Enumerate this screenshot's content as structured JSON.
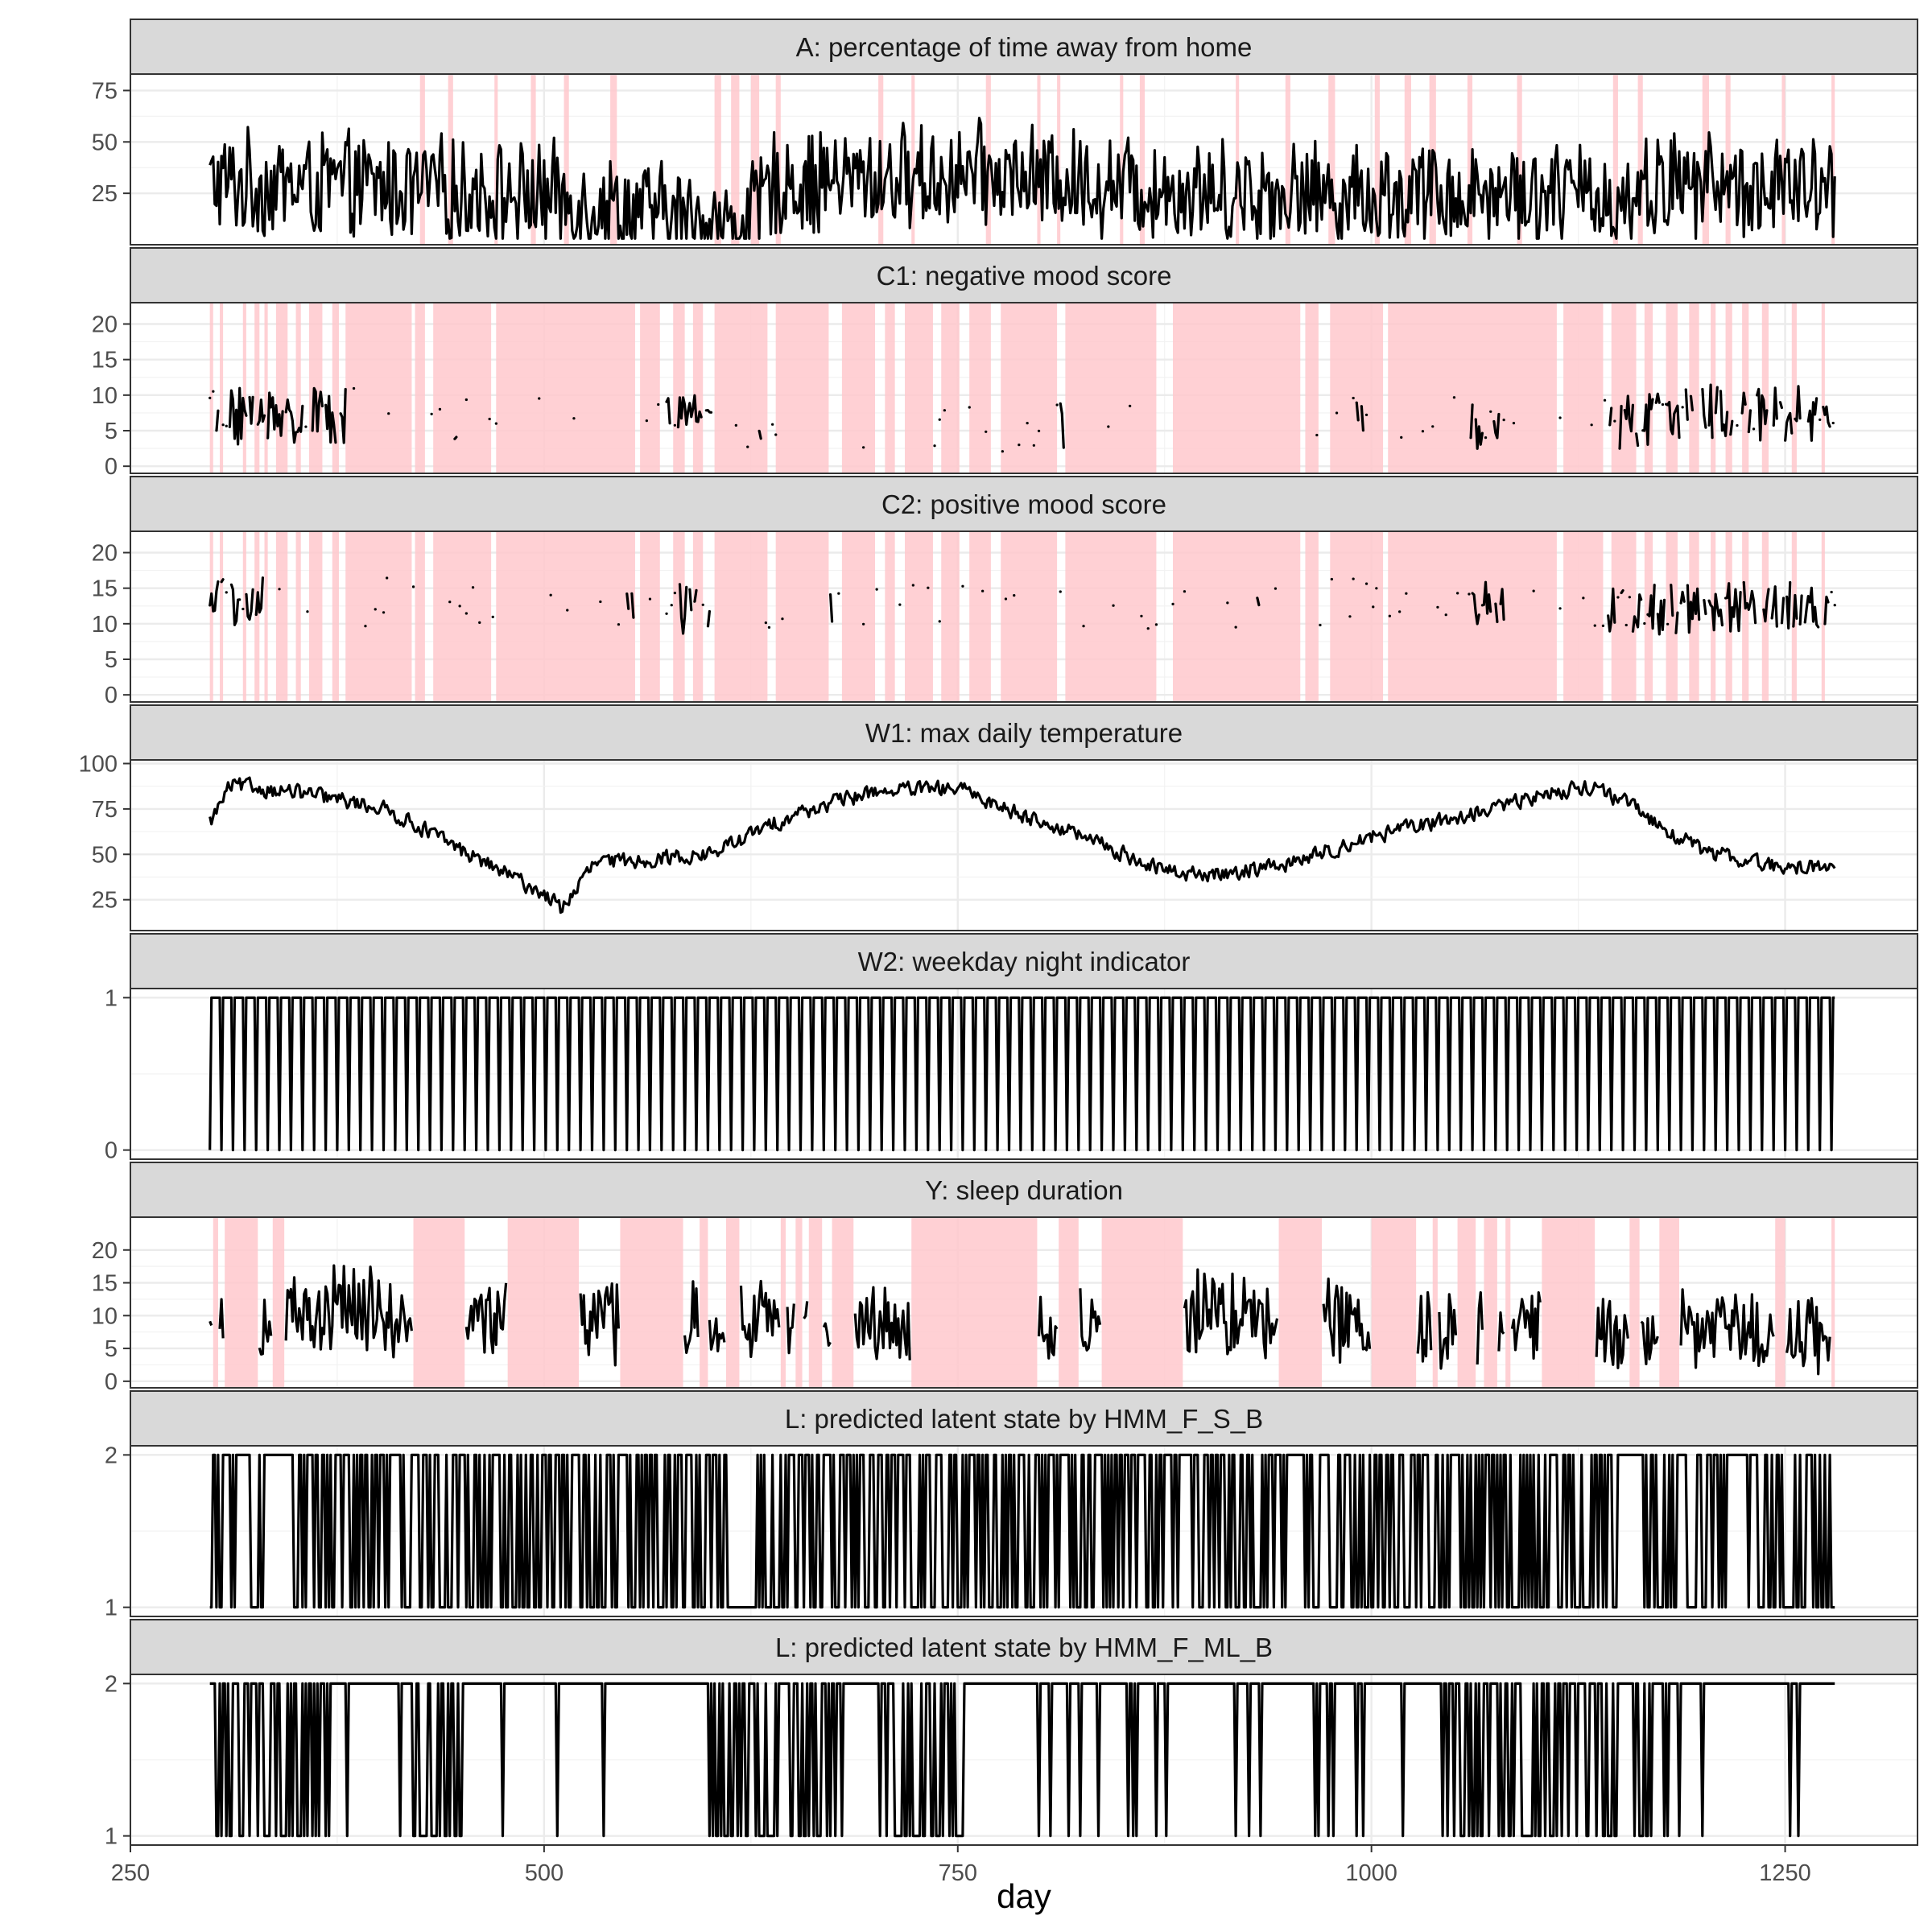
{
  "chart_data": {
    "type": "line",
    "xlabel": "day",
    "xlim": [
      250,
      1330
    ],
    "x_ticks": [
      250,
      500,
      750,
      1000,
      1250
    ],
    "x_tick_labels": [
      "250",
      "500",
      "750",
      "1000",
      "1250"
    ],
    "x_range": [
      298,
      1280
    ],
    "highlight_color": "#ffc8cc",
    "line_color": "#000000",
    "strip_color": "#d9d9d9",
    "panels": [
      {
        "title": "A: percentage of time away from home",
        "kind": "noisy",
        "ylim": [
          0,
          83
        ],
        "yticks": [
          25,
          50,
          75
        ],
        "yticklabels": [
          "25",
          "50",
          "75"
        ],
        "base_knots": [
          [
            298,
            30
          ],
          [
            400,
            28
          ],
          [
            500,
            24
          ],
          [
            620,
            8
          ],
          [
            640,
            30
          ],
          [
            700,
            32
          ],
          [
            760,
            34
          ],
          [
            900,
            26
          ],
          [
            1000,
            24
          ],
          [
            1100,
            26
          ],
          [
            1150,
            22
          ],
          [
            1180,
            30
          ],
          [
            1280,
            26
          ]
        ],
        "noise": 18,
        "vmin": 3,
        "vmax": 79,
        "shaded": [
          [
            425,
            428
          ],
          [
            442,
            445
          ],
          [
            470,
            472
          ],
          [
            492,
            495
          ],
          [
            512,
            515
          ],
          [
            540,
            544
          ],
          [
            603,
            607
          ],
          [
            613,
            618
          ],
          [
            625,
            630
          ],
          [
            640,
            643
          ],
          [
            702,
            705
          ],
          [
            722,
            724
          ],
          [
            767,
            770
          ],
          [
            798,
            800
          ],
          [
            810,
            812
          ],
          [
            848,
            850
          ],
          [
            860,
            863
          ],
          [
            918,
            920
          ],
          [
            948,
            951
          ],
          [
            974,
            978
          ],
          [
            1002,
            1005
          ],
          [
            1020,
            1024
          ],
          [
            1035,
            1039
          ],
          [
            1058,
            1061
          ],
          [
            1088,
            1091
          ],
          [
            1146,
            1149
          ],
          [
            1161,
            1164
          ],
          [
            1200,
            1204
          ],
          [
            1214,
            1217
          ],
          [
            1248,
            1250
          ],
          [
            1278,
            1280
          ]
        ]
      },
      {
        "title": "C1: negative mood score",
        "kind": "sparse",
        "ylim": [
          -1,
          23
        ],
        "yticks": [
          0,
          5,
          10,
          15,
          20
        ],
        "yticklabels": [
          "0",
          "5",
          "10",
          "15",
          "20"
        ],
        "base_knots": [
          [
            298,
            7
          ],
          [
            400,
            7
          ],
          [
            600,
            6
          ],
          [
            800,
            6
          ],
          [
            1000,
            6
          ],
          [
            1140,
            6
          ],
          [
            1200,
            8
          ],
          [
            1280,
            7
          ]
        ],
        "noise": 4,
        "vmin": 1,
        "vmax": 21,
        "dense_spans": [
          [
            298,
            380
          ],
          [
            573,
            600
          ],
          [
            1060,
            1080
          ],
          [
            1140,
            1280
          ]
        ],
        "shaded": [
          [
            298,
            300
          ],
          [
            304,
            306
          ],
          [
            318,
            320
          ],
          [
            325,
            328
          ],
          [
            331,
            333
          ],
          [
            338,
            345
          ],
          [
            350,
            353
          ],
          [
            358,
            366
          ],
          [
            372,
            376
          ],
          [
            380,
            420
          ],
          [
            422,
            428
          ],
          [
            433,
            468
          ],
          [
            471,
            555
          ],
          [
            558,
            570
          ],
          [
            578,
            585
          ],
          [
            590,
            596
          ],
          [
            603,
            635
          ],
          [
            640,
            672
          ],
          [
            680,
            700
          ],
          [
            706,
            712
          ],
          [
            718,
            735
          ],
          [
            740,
            751
          ],
          [
            757,
            770
          ],
          [
            776,
            810
          ],
          [
            815,
            870
          ],
          [
            880,
            957
          ],
          [
            960,
            968
          ],
          [
            975,
            1007
          ],
          [
            1010,
            1112
          ],
          [
            1116,
            1140
          ],
          [
            1145,
            1160
          ],
          [
            1165,
            1170
          ],
          [
            1178,
            1185
          ],
          [
            1192,
            1198
          ],
          [
            1205,
            1208
          ],
          [
            1214,
            1218
          ],
          [
            1224,
            1228
          ],
          [
            1236,
            1240
          ],
          [
            1254,
            1257
          ],
          [
            1272,
            1274
          ]
        ]
      },
      {
        "title": "C2: positive mood score",
        "kind": "sparse",
        "ylim": [
          -1,
          23
        ],
        "yticks": [
          0,
          5,
          10,
          15,
          20
        ],
        "yticklabels": [
          "0",
          "5",
          "10",
          "15",
          "20"
        ],
        "base_knots": [
          [
            298,
            13
          ],
          [
            400,
            13
          ],
          [
            600,
            12
          ],
          [
            800,
            12
          ],
          [
            1000,
            13
          ],
          [
            1140,
            12
          ],
          [
            1200,
            12
          ],
          [
            1280,
            13
          ]
        ],
        "noise": 3.5,
        "vmin": 1,
        "vmax": 19,
        "dense_spans": [
          [
            298,
            330
          ],
          [
            573,
            600
          ],
          [
            1060,
            1080
          ],
          [
            1140,
            1280
          ]
        ],
        "shaded": [
          [
            298,
            300
          ],
          [
            304,
            306
          ],
          [
            318,
            320
          ],
          [
            325,
            328
          ],
          [
            331,
            333
          ],
          [
            338,
            345
          ],
          [
            350,
            353
          ],
          [
            358,
            366
          ],
          [
            372,
            376
          ],
          [
            380,
            420
          ],
          [
            422,
            428
          ],
          [
            433,
            468
          ],
          [
            471,
            555
          ],
          [
            558,
            570
          ],
          [
            578,
            585
          ],
          [
            590,
            596
          ],
          [
            603,
            635
          ],
          [
            640,
            672
          ],
          [
            680,
            700
          ],
          [
            706,
            712
          ],
          [
            718,
            735
          ],
          [
            740,
            751
          ],
          [
            757,
            770
          ],
          [
            776,
            810
          ],
          [
            815,
            870
          ],
          [
            880,
            957
          ],
          [
            960,
            968
          ],
          [
            975,
            1007
          ],
          [
            1010,
            1112
          ],
          [
            1116,
            1140
          ],
          [
            1145,
            1160
          ],
          [
            1165,
            1170
          ],
          [
            1178,
            1185
          ],
          [
            1192,
            1198
          ],
          [
            1205,
            1208
          ],
          [
            1214,
            1218
          ],
          [
            1224,
            1228
          ],
          [
            1236,
            1240
          ],
          [
            1254,
            1257
          ],
          [
            1272,
            1274
          ]
        ]
      },
      {
        "title": "W1: max daily temperature",
        "kind": "temp",
        "ylim": [
          8,
          102
        ],
        "yticks": [
          25,
          50,
          75,
          100
        ],
        "yticklabels": [
          "25",
          "50",
          "75",
          "100"
        ],
        "base_knots": [
          [
            298,
            68
          ],
          [
            310,
            88
          ],
          [
            350,
            84
          ],
          [
            400,
            76
          ],
          [
            425,
            65
          ],
          [
            450,
            52
          ],
          [
            500,
            28
          ],
          [
            510,
            20
          ],
          [
            530,
            45
          ],
          [
            600,
            50
          ],
          [
            650,
            72
          ],
          [
            700,
            85
          ],
          [
            750,
            86
          ],
          [
            780,
            75
          ],
          [
            830,
            58
          ],
          [
            870,
            42
          ],
          [
            900,
            38
          ],
          [
            950,
            45
          ],
          [
            1000,
            60
          ],
          [
            1060,
            72
          ],
          [
            1100,
            82
          ],
          [
            1130,
            88
          ],
          [
            1150,
            80
          ],
          [
            1175,
            65
          ],
          [
            1200,
            52
          ],
          [
            1250,
            42
          ],
          [
            1280,
            45
          ]
        ],
        "noise": 6,
        "vmin": 10,
        "vmax": 98,
        "shaded": []
      },
      {
        "title": "W2: weekday night indicator",
        "kind": "binary",
        "ylim": [
          -0.06,
          1.06
        ],
        "yticks": [
          0,
          1
        ],
        "yticklabels": [
          "0",
          "1"
        ],
        "shaded": []
      },
      {
        "title": "Y: sleep duration",
        "kind": "noisy_gaps",
        "ylim": [
          -1,
          25
        ],
        "yticks": [
          0,
          5,
          10,
          15,
          20
        ],
        "yticklabels": [
          "0",
          "5",
          "10",
          "15",
          "20"
        ],
        "base_knots": [
          [
            298,
            8
          ],
          [
            360,
            9
          ],
          [
            380,
            12
          ],
          [
            420,
            9
          ],
          [
            600,
            9
          ],
          [
            800,
            8
          ],
          [
            950,
            11
          ],
          [
            1000,
            9
          ],
          [
            1100,
            7
          ],
          [
            1200,
            8
          ],
          [
            1280,
            7
          ]
        ],
        "noise": 4.5,
        "vmin": 1,
        "vmax": 22,
        "shaded": [
          [
            300,
            303
          ],
          [
            307,
            327
          ],
          [
            336,
            343
          ],
          [
            421,
            452
          ],
          [
            478,
            521
          ],
          [
            546,
            584
          ],
          [
            594,
            599
          ],
          [
            610,
            618
          ],
          [
            643,
            646
          ],
          [
            652,
            656
          ],
          [
            660,
            668
          ],
          [
            674,
            687
          ],
          [
            722,
            798
          ],
          [
            811,
            823
          ],
          [
            837,
            886
          ],
          [
            944,
            970
          ],
          [
            1000,
            1027
          ],
          [
            1037,
            1040
          ],
          [
            1052,
            1063
          ],
          [
            1068,
            1076
          ],
          [
            1081,
            1084
          ],
          [
            1103,
            1135
          ],
          [
            1156,
            1162
          ],
          [
            1174,
            1186
          ],
          [
            1244,
            1250
          ],
          [
            1278,
            1280
          ]
        ]
      },
      {
        "title": "L: predicted latent state by HMM_F_S_B",
        "kind": "state_S",
        "ylim": [
          0.94,
          2.06
        ],
        "yticks": [
          1,
          2
        ],
        "yticklabels": [
          "1",
          "2"
        ],
        "shaded": []
      },
      {
        "title": "L: predicted latent state by HMM_F_ML_B",
        "kind": "state_ML",
        "ylim": [
          0.94,
          2.06
        ],
        "yticks": [
          1,
          2
        ],
        "yticklabels": [
          "1",
          "2"
        ],
        "shaded": []
      }
    ]
  }
}
